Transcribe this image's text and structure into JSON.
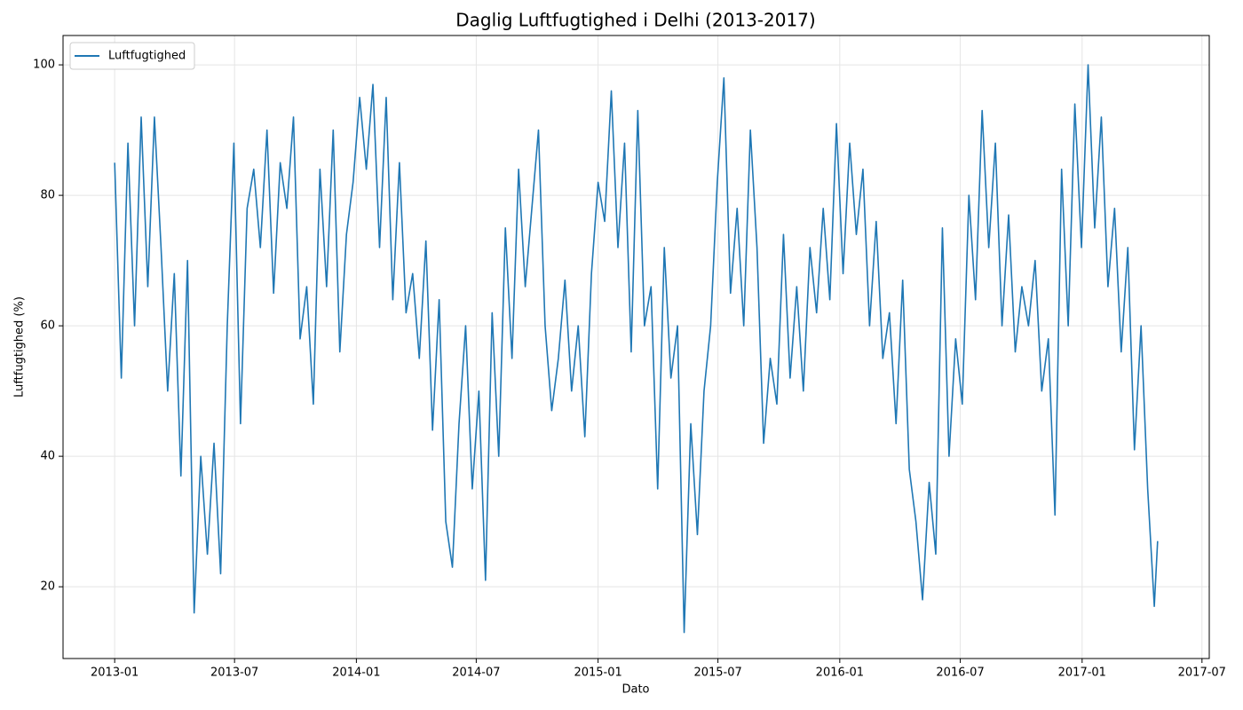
{
  "chart_data": {
    "type": "line",
    "title": "Daglig Luftfugtighed i Delhi (2013-2017)",
    "x_label": "Dato",
    "y_label": "Luftfugtighed (%)",
    "x": [
      0,
      10,
      20,
      30,
      40,
      50,
      60,
      70,
      80,
      90,
      100,
      110,
      120,
      130,
      140,
      150,
      160,
      170,
      180,
      190,
      200,
      210,
      220,
      230,
      240,
      250,
      260,
      270,
      280,
      290,
      300,
      310,
      320,
      330,
      340,
      350,
      360,
      370,
      380,
      390,
      400,
      410,
      420,
      430,
      440,
      450,
      460,
      470,
      480,
      490,
      500,
      510,
      520,
      530,
      540,
      550,
      560,
      570,
      580,
      590,
      600,
      610,
      620,
      630,
      640,
      650,
      660,
      670,
      680,
      690,
      700,
      710,
      720,
      730,
      740,
      750,
      760,
      770,
      780,
      790,
      800,
      810,
      820,
      830,
      840,
      850,
      860,
      870,
      880,
      890,
      900,
      910,
      920,
      930,
      940,
      950,
      960,
      970,
      980,
      990,
      1000,
      1010,
      1020,
      1030,
      1040,
      1050,
      1060,
      1070,
      1080,
      1090,
      1100,
      1110,
      1120,
      1130,
      1140,
      1150,
      1160,
      1170,
      1180,
      1190,
      1200,
      1210,
      1220,
      1230,
      1240,
      1250,
      1260,
      1270,
      1280,
      1290,
      1300,
      1310,
      1320,
      1330,
      1340,
      1350,
      1360,
      1370,
      1380,
      1390,
      1400,
      1410,
      1420,
      1430,
      1440,
      1450,
      1460,
      1470,
      1480,
      1490,
      1500,
      1510,
      1520,
      1530,
      1540,
      1550,
      1560,
      1570,
      1575
    ],
    "series": [
      {
        "name": "Luftfugtighed",
        "color": "#1f77b4",
        "values": [
          85,
          52,
          88,
          60,
          92,
          66,
          92,
          72,
          50,
          68,
          37,
          70,
          16,
          40,
          25,
          42,
          22,
          60,
          88,
          45,
          78,
          84,
          72,
          90,
          65,
          85,
          78,
          92,
          58,
          66,
          48,
          84,
          66,
          90,
          56,
          74,
          82,
          95,
          84,
          97,
          72,
          95,
          64,
          85,
          62,
          68,
          55,
          73,
          44,
          64,
          30,
          23,
          45,
          60,
          35,
          50,
          21,
          62,
          40,
          75,
          55,
          84,
          66,
          78,
          90,
          60,
          47,
          55,
          67,
          50,
          60,
          43,
          68,
          82,
          76,
          96,
          72,
          88,
          56,
          93,
          60,
          66,
          35,
          72,
          52,
          60,
          13,
          45,
          28,
          50,
          60,
          82,
          98,
          65,
          78,
          60,
          90,
          72,
          42,
          55,
          48,
          74,
          52,
          66,
          50,
          72,
          62,
          78,
          64,
          91,
          68,
          88,
          74,
          84,
          60,
          76,
          55,
          62,
          45,
          67,
          38,
          30,
          18,
          36,
          25,
          75,
          40,
          58,
          48,
          80,
          64,
          93,
          72,
          88,
          60,
          77,
          56,
          66,
          60,
          70,
          50,
          58,
          31,
          84,
          60,
          94,
          72,
          100,
          75,
          92,
          66,
          78,
          56,
          72,
          41,
          60,
          35,
          17,
          27
        ]
      }
    ],
    "xlim": [
      -78,
      1653
    ],
    "xticks": [
      {
        "value": 0,
        "label": "2013-01"
      },
      {
        "value": 181,
        "label": "2013-07"
      },
      {
        "value": 365,
        "label": "2014-01"
      },
      {
        "value": 546,
        "label": "2014-07"
      },
      {
        "value": 730,
        "label": "2015-01"
      },
      {
        "value": 911,
        "label": "2015-07"
      },
      {
        "value": 1095,
        "label": "2016-01"
      },
      {
        "value": 1277,
        "label": "2016-07"
      },
      {
        "value": 1461,
        "label": "2017-01"
      },
      {
        "value": 1642,
        "label": "2017-07"
      }
    ],
    "ylim": [
      9,
      104.5
    ],
    "yticks": [
      20,
      40,
      60,
      80,
      100
    ],
    "grid": true,
    "legend": "upper-left"
  }
}
